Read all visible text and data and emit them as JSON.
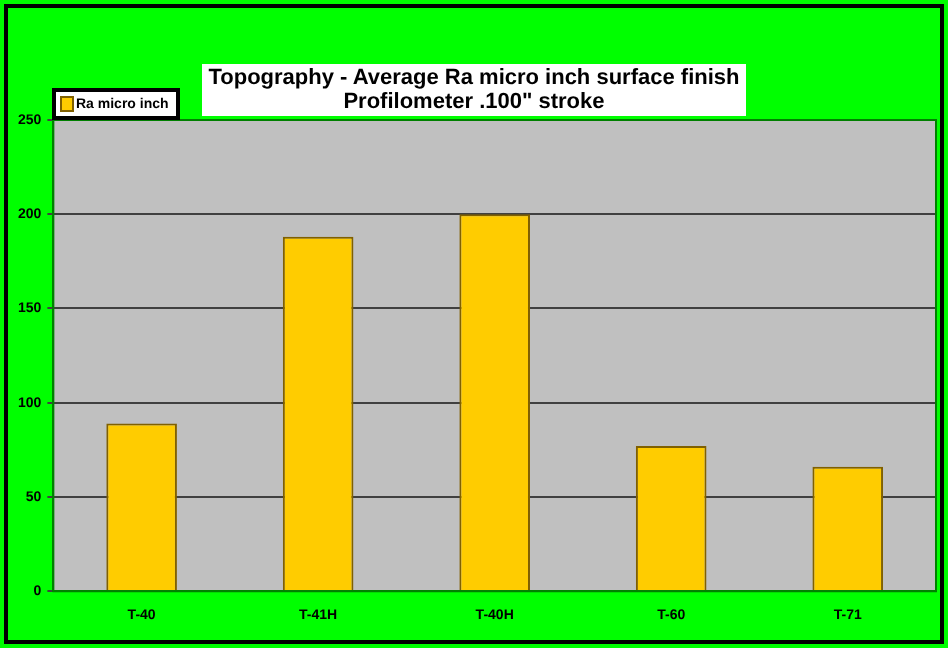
{
  "chart_data": {
    "type": "bar",
    "title": "Topography - Average Ra micro inch surface finish\nProfilometer .100\" stroke",
    "categories": [
      "T-40",
      "T-41H",
      "T-40H",
      "T-60",
      "T-71"
    ],
    "series": [
      {
        "name": "Ra micro inch",
        "color": "#ffcc00",
        "values": [
          89,
          188,
          200,
          77,
          66
        ]
      }
    ],
    "ylim": [
      0,
      250
    ],
    "yticks": [
      0,
      50,
      100,
      150,
      200,
      250
    ],
    "grid": "y",
    "legend": "top left"
  }
}
